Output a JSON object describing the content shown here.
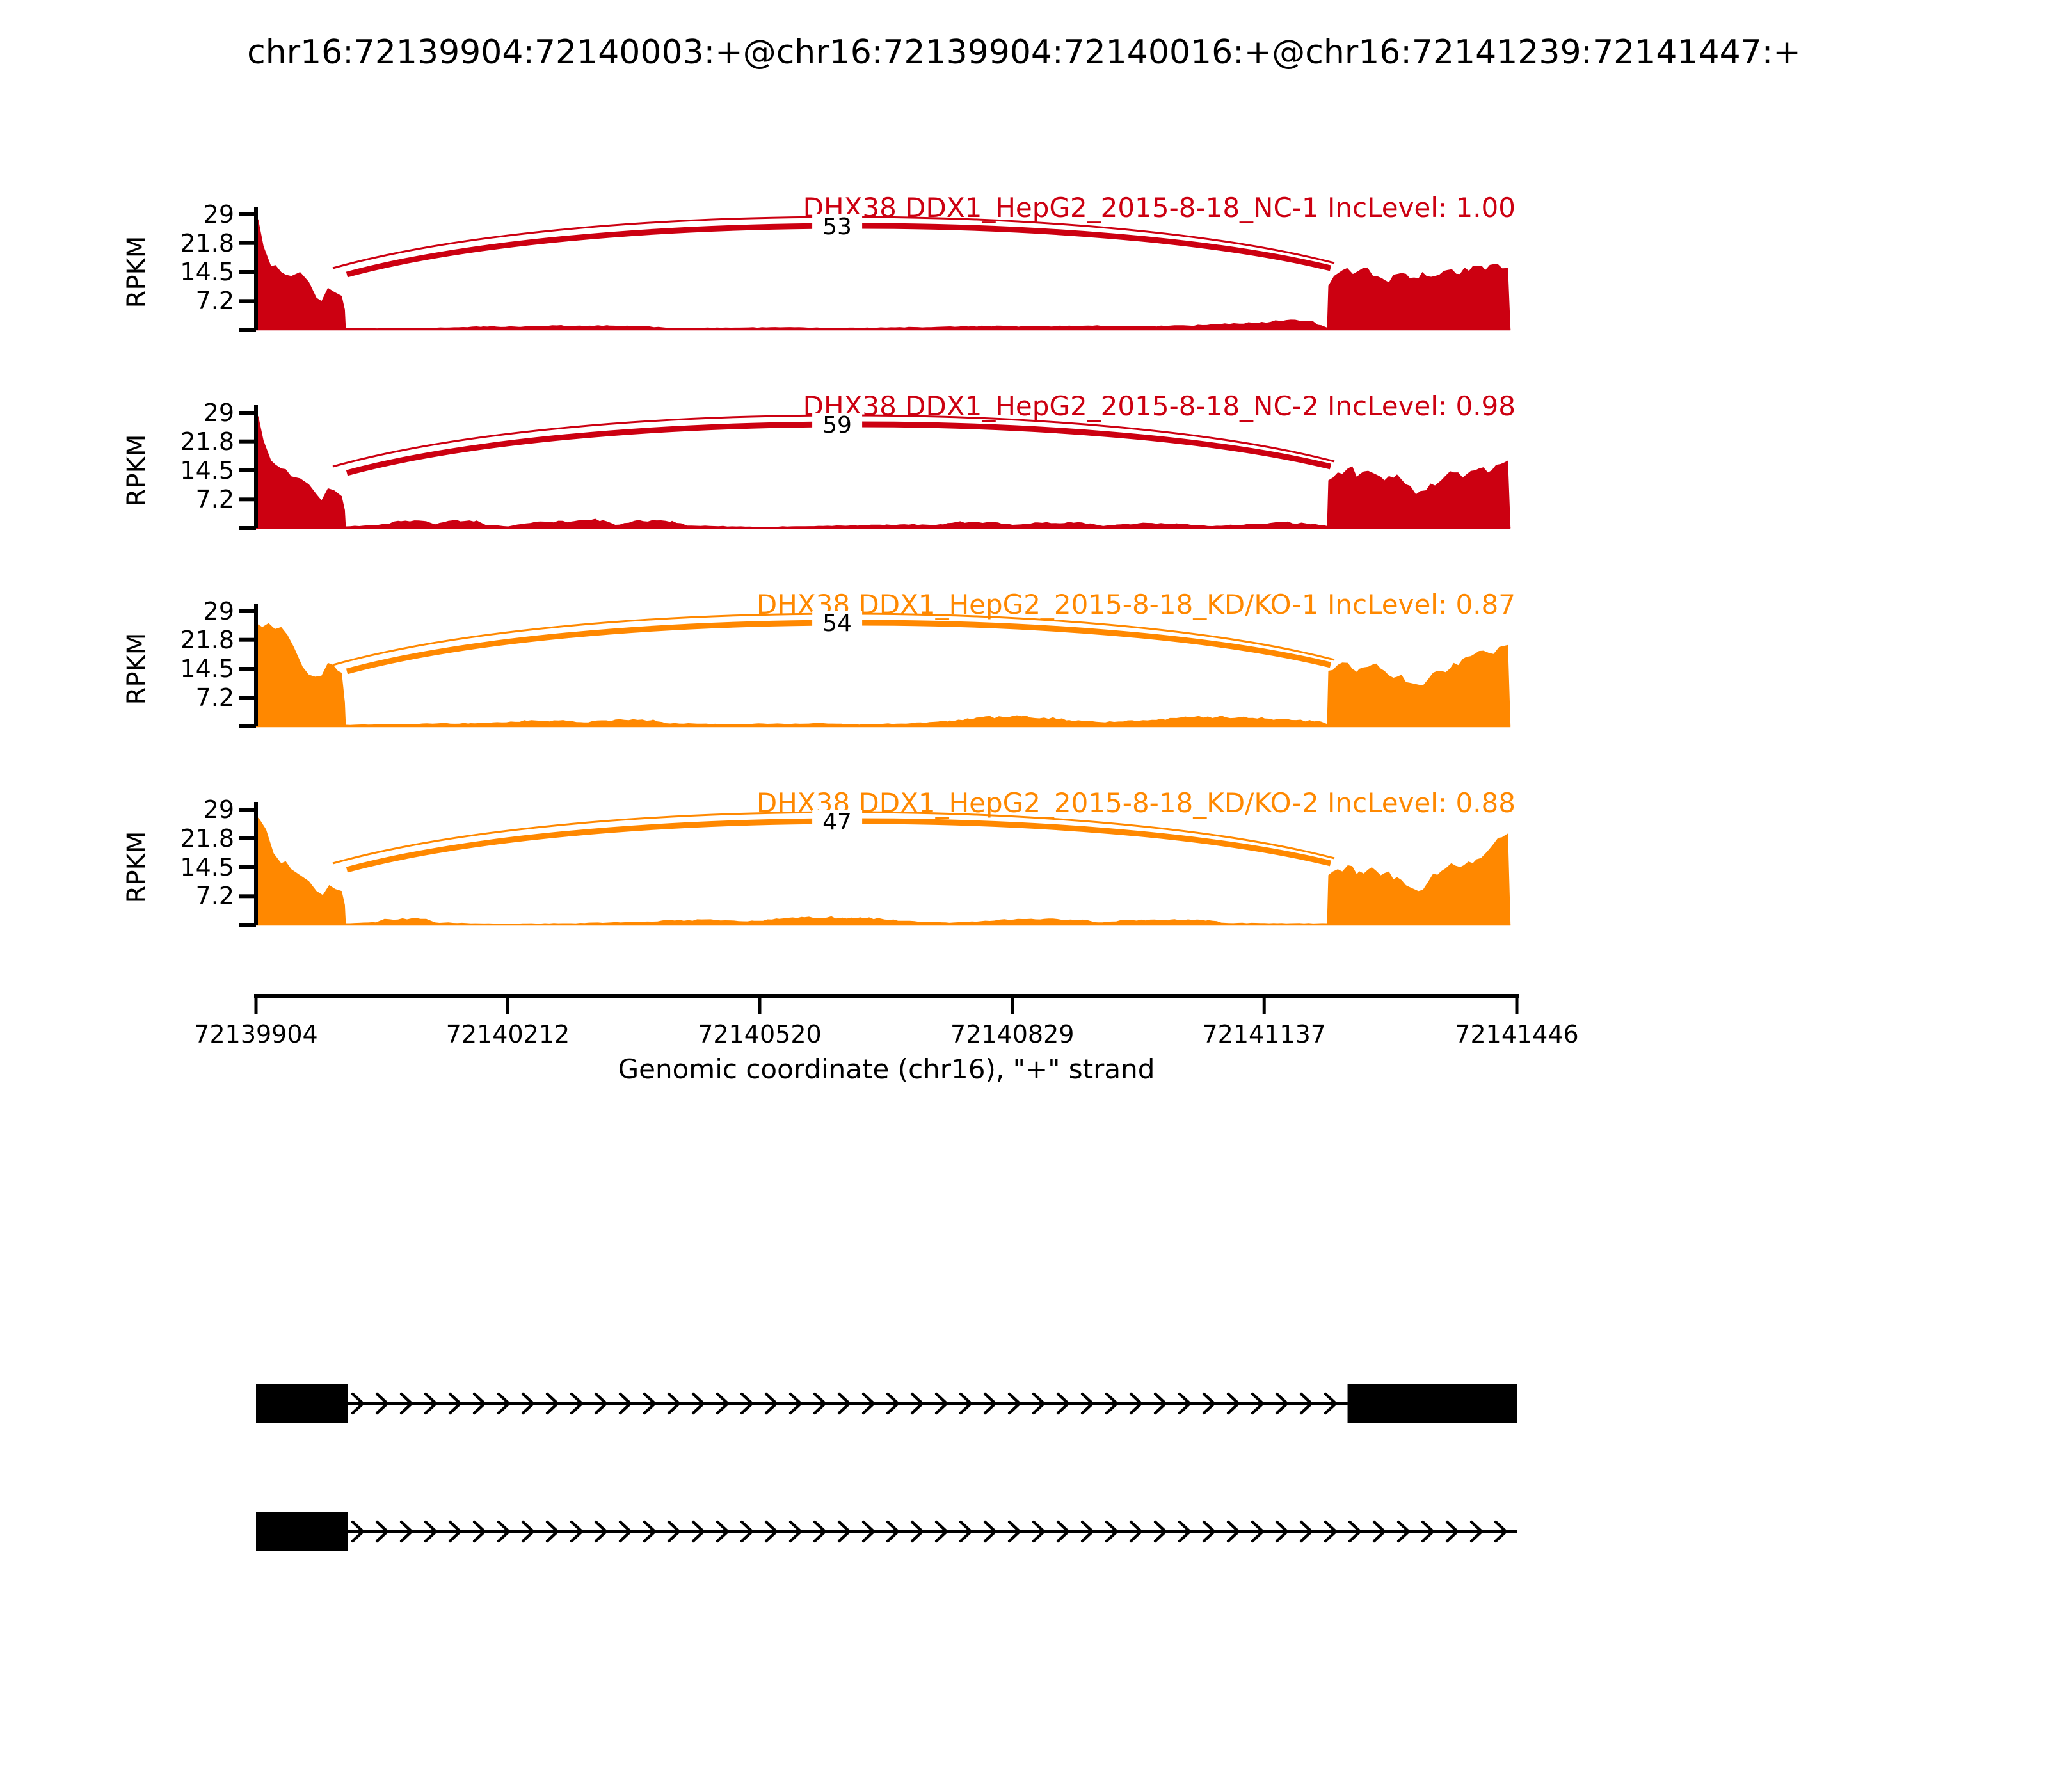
{
  "figure": {
    "title": "chr16:72139904:72140003:+@chr16:72139904:72140016:+@chr16:72141239:72141447:+"
  },
  "chart_data": {
    "type": "area",
    "subtype": "sashimi-plot",
    "title": "chr16:72139904:72140003:+@chr16:72139904:72140016:+@chr16:72141239:72141447:+",
    "xlabel": "Genomic coordinate (chr16), \"+\" strand",
    "ylabel": "RPKM",
    "grid": false,
    "x_range": [
      72139904,
      72141446
    ],
    "x_ticks": [
      "72139904",
      "72140212",
      "72140520",
      "72140829",
      "72141137",
      "72141446"
    ],
    "y_max": 29,
    "y_ticks": [
      "29",
      "21.8",
      "14.5",
      "7.2"
    ],
    "junctions": {
      "upper_arc_start": 72140003,
      "lower_arc_start": 72140016,
      "arc_end": 72141239
    },
    "exon_regions": {
      "left": [
        72139904,
        72140016
      ],
      "right": [
        72141239,
        72141447
      ]
    },
    "tracks": [
      {
        "sample": "DHX38 DDX1_HepG2_2015-8-18_NC-1",
        "inc_level": "1.00",
        "label": "DHX38 DDX1_HepG2_2015-8-18_NC-1 IncLevel: 1.00",
        "color": "#CC0011",
        "junction_count": "53",
        "seed": 11,
        "coverage": [
          [
            0,
            29
          ],
          [
            0.002,
            27.5
          ],
          [
            0.006,
            21
          ],
          [
            0.012,
            16
          ],
          [
            0.02,
            14.5
          ],
          [
            0.028,
            13.5
          ],
          [
            0.035,
            14.5
          ],
          [
            0.042,
            12
          ],
          [
            0.048,
            8
          ],
          [
            0.052,
            7.2
          ],
          [
            0.057,
            10.5
          ],
          [
            0.062,
            9.5
          ],
          [
            0.068,
            8.5
          ],
          [
            0.0705,
            5
          ],
          [
            0.0712,
            0.4
          ],
          [
            0.1,
            0.35
          ],
          [
            0.15,
            0.5
          ],
          [
            0.18,
            0.8
          ],
          [
            0.21,
            0.7
          ],
          [
            0.235,
            1.1
          ],
          [
            0.25,
            0.9
          ],
          [
            0.28,
            1.0
          ],
          [
            0.305,
            0.9
          ],
          [
            0.33,
            0.4
          ],
          [
            0.38,
            0.5
          ],
          [
            0.42,
            0.6
          ],
          [
            0.46,
            0.4
          ],
          [
            0.5,
            0.5
          ],
          [
            0.54,
            0.7
          ],
          [
            0.58,
            0.9
          ],
          [
            0.62,
            0.8
          ],
          [
            0.66,
            1.0
          ],
          [
            0.7,
            0.8
          ],
          [
            0.74,
            1.0
          ],
          [
            0.78,
            1.5
          ],
          [
            0.81,
            2.3
          ],
          [
            0.835,
            2.2
          ],
          [
            0.845,
            1.1
          ],
          [
            0.8495,
            0.5
          ],
          [
            0.8505,
            11
          ],
          [
            0.855,
            13.5
          ],
          [
            0.862,
            15
          ],
          [
            0.87,
            14
          ],
          [
            0.878,
            15.5
          ],
          [
            0.886,
            13.5
          ],
          [
            0.895,
            12.5
          ],
          [
            0.905,
            14
          ],
          [
            0.915,
            13
          ],
          [
            0.925,
            14.5
          ],
          [
            0.935,
            13.5
          ],
          [
            0.945,
            15
          ],
          [
            0.955,
            14
          ],
          [
            0.965,
            16
          ],
          [
            0.975,
            15
          ],
          [
            0.985,
            16.5
          ],
          [
            0.993,
            15.5
          ],
          [
            0.995,
            0
          ]
        ]
      },
      {
        "sample": "DHX38 DDX1_HepG2_2015-8-18_NC-2",
        "inc_level": "0.98",
        "label": "DHX38 DDX1_HepG2_2015-8-18_NC-2 IncLevel: 0.98",
        "color": "#CC0011",
        "junction_count": "59",
        "seed": 22,
        "coverage": [
          [
            0,
            29
          ],
          [
            0.002,
            28
          ],
          [
            0.006,
            22
          ],
          [
            0.012,
            17
          ],
          [
            0.02,
            15
          ],
          [
            0.028,
            13
          ],
          [
            0.035,
            12.5
          ],
          [
            0.042,
            11
          ],
          [
            0.048,
            8.5
          ],
          [
            0.052,
            7
          ],
          [
            0.057,
            10
          ],
          [
            0.062,
            9.5
          ],
          [
            0.068,
            8
          ],
          [
            0.0705,
            4.5
          ],
          [
            0.0712,
            0.4
          ],
          [
            0.095,
            0.7
          ],
          [
            0.115,
            1.7
          ],
          [
            0.135,
            1.7
          ],
          [
            0.142,
            0.9
          ],
          [
            0.155,
            1.9
          ],
          [
            0.175,
            1.9
          ],
          [
            0.182,
            0.8
          ],
          [
            0.2,
            0.4
          ],
          [
            0.222,
            1.6
          ],
          [
            0.252,
            1.7
          ],
          [
            0.262,
            2.1
          ],
          [
            0.275,
            2.0
          ],
          [
            0.285,
            0.8
          ],
          [
            0.3,
            1.8
          ],
          [
            0.33,
            1.8
          ],
          [
            0.342,
            0.6
          ],
          [
            0.4,
            0.3
          ],
          [
            0.47,
            0.6
          ],
          [
            0.5,
            0.9
          ],
          [
            0.545,
            0.9
          ],
          [
            0.555,
            1.5
          ],
          [
            0.585,
            1.5
          ],
          [
            0.6,
            0.8
          ],
          [
            0.62,
            1.4
          ],
          [
            0.655,
            1.4
          ],
          [
            0.672,
            0.5
          ],
          [
            0.7,
            1.2
          ],
          [
            0.73,
            1.2
          ],
          [
            0.755,
            0.5
          ],
          [
            0.79,
            1.0
          ],
          [
            0.815,
            1.5
          ],
          [
            0.84,
            1.0
          ],
          [
            0.8495,
            0.5
          ],
          [
            0.8505,
            12
          ],
          [
            0.858,
            14
          ],
          [
            0.866,
            15
          ],
          [
            0.875,
            13.5
          ],
          [
            0.885,
            14
          ],
          [
            0.895,
            12
          ],
          [
            0.905,
            13.5
          ],
          [
            0.912,
            11
          ],
          [
            0.92,
            8.5
          ],
          [
            0.928,
            9.5
          ],
          [
            0.94,
            12
          ],
          [
            0.95,
            14
          ],
          [
            0.96,
            13.5
          ],
          [
            0.97,
            15
          ],
          [
            0.98,
            14.5
          ],
          [
            0.99,
            16.5
          ],
          [
            0.993,
            17
          ],
          [
            0.995,
            0
          ]
        ]
      },
      {
        "sample": "DHX38 DDX1_HepG2_2015-8-18_KD/KO-1",
        "inc_level": "0.87",
        "label": "DHX38 DDX1_HepG2_2015-8-18_KD/KO-1 IncLevel: 0.87",
        "color": "#FF8800",
        "junction_count": "54",
        "seed": 33,
        "coverage": [
          [
            0,
            26
          ],
          [
            0.005,
            25
          ],
          [
            0.01,
            26
          ],
          [
            0.015,
            24.5
          ],
          [
            0.02,
            25
          ],
          [
            0.025,
            23
          ],
          [
            0.03,
            20
          ],
          [
            0.037,
            15
          ],
          [
            0.042,
            13
          ],
          [
            0.047,
            12.5
          ],
          [
            0.052,
            12.8
          ],
          [
            0.057,
            16
          ],
          [
            0.061,
            15.5
          ],
          [
            0.065,
            14
          ],
          [
            0.068,
            13.5
          ],
          [
            0.0705,
            6
          ],
          [
            0.0712,
            0.4
          ],
          [
            0.1,
            0.5
          ],
          [
            0.14,
            0.7
          ],
          [
            0.17,
            0.8
          ],
          [
            0.195,
            1.0
          ],
          [
            0.215,
            1.4
          ],
          [
            0.24,
            1.5
          ],
          [
            0.26,
            1.0
          ],
          [
            0.285,
            1.7
          ],
          [
            0.315,
            1.7
          ],
          [
            0.325,
            0.8
          ],
          [
            0.37,
            0.6
          ],
          [
            0.41,
            0.7
          ],
          [
            0.45,
            0.8
          ],
          [
            0.48,
            0.5
          ],
          [
            0.52,
            0.8
          ],
          [
            0.55,
            1.5
          ],
          [
            0.575,
            2.3
          ],
          [
            0.6,
            2.6
          ],
          [
            0.625,
            2.2
          ],
          [
            0.645,
            1.6
          ],
          [
            0.67,
            1.1
          ],
          [
            0.7,
            1.4
          ],
          [
            0.73,
            2.1
          ],
          [
            0.755,
            2.5
          ],
          [
            0.78,
            2.3
          ],
          [
            0.8,
            2.0
          ],
          [
            0.825,
            1.6
          ],
          [
            0.845,
            1.2
          ],
          [
            0.8495,
            0.6
          ],
          [
            0.8505,
            14
          ],
          [
            0.858,
            15.5
          ],
          [
            0.866,
            16
          ],
          [
            0.875,
            14.5
          ],
          [
            0.885,
            15.5
          ],
          [
            0.895,
            14
          ],
          [
            0.905,
            12.5
          ],
          [
            0.915,
            11
          ],
          [
            0.922,
            10.5
          ],
          [
            0.93,
            12
          ],
          [
            0.94,
            14
          ],
          [
            0.95,
            16
          ],
          [
            0.96,
            17.5
          ],
          [
            0.97,
            19
          ],
          [
            0.978,
            18.5
          ],
          [
            0.986,
            20
          ],
          [
            0.993,
            20.5
          ],
          [
            0.995,
            0
          ]
        ]
      },
      {
        "sample": "DHX38 DDX1_HepG2_2015-8-18_KD/KO-2",
        "inc_level": "0.88",
        "label": "DHX38 DDX1_HepG2_2015-8-18_KD/KO-2 IncLevel: 0.88",
        "color": "#FF8800",
        "junction_count": "47",
        "seed": 44,
        "coverage": [
          [
            0,
            27.5
          ],
          [
            0.003,
            26.5
          ],
          [
            0.008,
            24
          ],
          [
            0.014,
            18
          ],
          [
            0.02,
            15.5
          ],
          [
            0.028,
            14
          ],
          [
            0.035,
            12.5
          ],
          [
            0.042,
            11
          ],
          [
            0.048,
            8.5
          ],
          [
            0.053,
            7.5
          ],
          [
            0.058,
            10
          ],
          [
            0.063,
            9
          ],
          [
            0.068,
            8.5
          ],
          [
            0.0705,
            5
          ],
          [
            0.0712,
            0.4
          ],
          [
            0.095,
            0.6
          ],
          [
            0.102,
            1.5
          ],
          [
            0.135,
            1.5
          ],
          [
            0.142,
            0.6
          ],
          [
            0.19,
            0.3
          ],
          [
            0.25,
            0.4
          ],
          [
            0.315,
            0.8
          ],
          [
            0.325,
            1.2
          ],
          [
            0.365,
            1.2
          ],
          [
            0.395,
            1.0
          ],
          [
            0.415,
            1.5
          ],
          [
            0.435,
            1.9
          ],
          [
            0.465,
            1.8
          ],
          [
            0.495,
            1.6
          ],
          [
            0.515,
            1.0
          ],
          [
            0.55,
            0.5
          ],
          [
            0.59,
            1.3
          ],
          [
            0.625,
            1.5
          ],
          [
            0.655,
            1.3
          ],
          [
            0.668,
            0.6
          ],
          [
            0.695,
            1.2
          ],
          [
            0.725,
            1.3
          ],
          [
            0.755,
            1.2
          ],
          [
            0.768,
            0.5
          ],
          [
            0.81,
            0.4
          ],
          [
            0.8495,
            0.4
          ],
          [
            0.8505,
            12.5
          ],
          [
            0.858,
            14
          ],
          [
            0.866,
            15
          ],
          [
            0.875,
            13.5
          ],
          [
            0.885,
            14.5
          ],
          [
            0.895,
            13
          ],
          [
            0.905,
            12
          ],
          [
            0.915,
            9.5
          ],
          [
            0.922,
            8.5
          ],
          [
            0.93,
            11
          ],
          [
            0.94,
            13.5
          ],
          [
            0.948,
            15.5
          ],
          [
            0.958,
            15
          ],
          [
            0.968,
            16.5
          ],
          [
            0.978,
            19
          ],
          [
            0.988,
            22
          ],
          [
            0.993,
            23
          ],
          [
            0.995,
            0
          ]
        ]
      }
    ],
    "transcripts": [
      {
        "exons": [
          [
            72139904,
            72140016
          ],
          [
            72141239,
            72141447
          ]
        ],
        "direction": "+"
      },
      {
        "exons": [
          [
            72139904,
            72140016
          ]
        ],
        "line_end": 72141446,
        "direction": "+"
      }
    ]
  }
}
